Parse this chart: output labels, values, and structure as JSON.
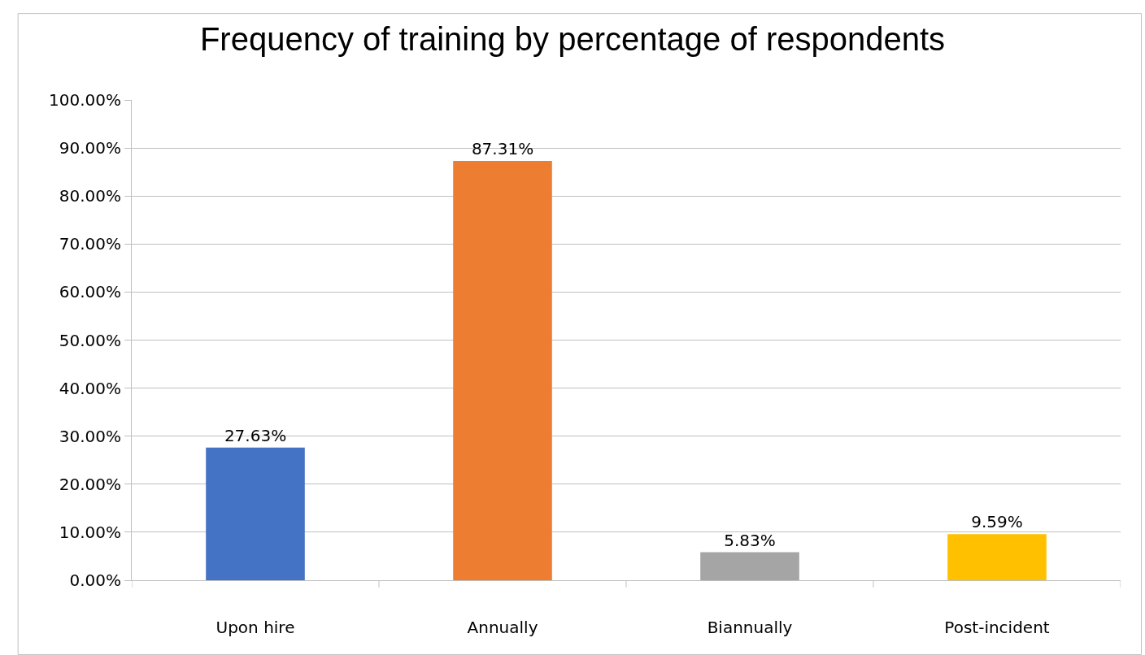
{
  "chart_data": {
    "type": "bar",
    "title": "Frequency of training by percentage of respondents",
    "categories": [
      "Upon hire",
      "Annually",
      "Biannually",
      "Post-incident"
    ],
    "values": [
      27.63,
      87.31,
      5.83,
      9.59
    ],
    "colors": [
      "#4472c4",
      "#ed7d31",
      "#a5a5a5",
      "#ffc000"
    ],
    "value_labels": [
      "27.63%",
      "87.31%",
      "5.83%",
      "9.59%"
    ],
    "ylim": [
      0,
      100
    ],
    "yticks": [
      {
        "value": 0,
        "label": "0.00%"
      },
      {
        "value": 10,
        "label": "10.00%"
      },
      {
        "value": 20,
        "label": "20.00%"
      },
      {
        "value": 30,
        "label": "30.00%"
      },
      {
        "value": 40,
        "label": "40.00%"
      },
      {
        "value": 50,
        "label": "50.00%"
      },
      {
        "value": 60,
        "label": "60.00%"
      },
      {
        "value": 70,
        "label": "70.00%"
      },
      {
        "value": 80,
        "label": "80.00%"
      },
      {
        "value": 90,
        "label": "90.00%"
      },
      {
        "value": 100,
        "label": "100.00%"
      }
    ],
    "grid": "y"
  }
}
